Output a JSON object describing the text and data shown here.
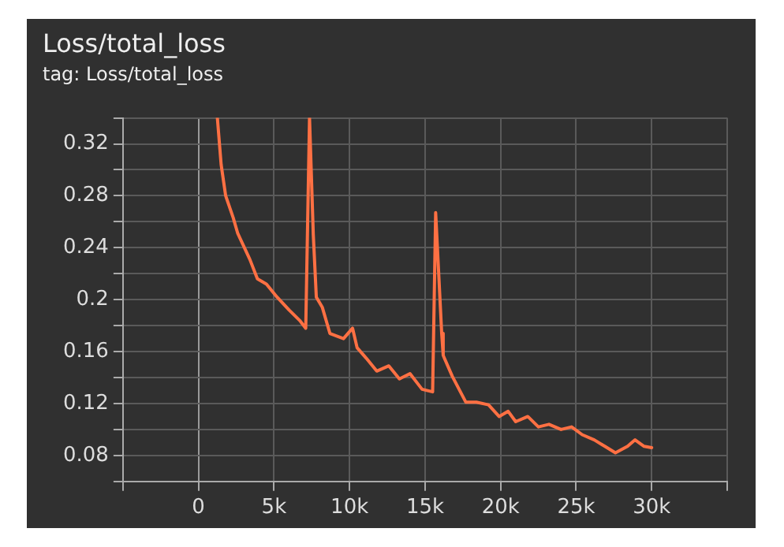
{
  "chart_data": {
    "type": "line",
    "title": "Loss/total_loss",
    "subtitle": "tag: Loss/total_loss",
    "x": [
      1250,
      1500,
      1800,
      2300,
      2600,
      3400,
      3900,
      4500,
      5200,
      6000,
      6700,
      7100,
      7350,
      7600,
      7800,
      8200,
      8700,
      9600,
      10200,
      10500,
      11100,
      11800,
      12600,
      13300,
      14000,
      14800,
      15500,
      15700,
      16100,
      16200,
      16800,
      17700,
      18400,
      19200,
      19900,
      20500,
      21000,
      21800,
      22500,
      23200,
      24000,
      24700,
      25400,
      26200,
      26900,
      27600,
      28400,
      28900,
      29500,
      30000
    ],
    "values": [
      0.34,
      0.304,
      0.28,
      0.263,
      0.251,
      0.231,
      0.216,
      0.212,
      0.202,
      0.192,
      0.184,
      0.178,
      0.34,
      0.25,
      0.202,
      0.194,
      0.174,
      0.17,
      0.178,
      0.163,
      0.155,
      0.145,
      0.149,
      0.139,
      0.143,
      0.131,
      0.129,
      0.267,
      0.174,
      0.157,
      0.141,
      0.121,
      0.121,
      0.119,
      0.11,
      0.114,
      0.106,
      0.11,
      0.102,
      0.104,
      0.1,
      0.102,
      0.096,
      0.092,
      0.087,
      0.082,
      0.087,
      0.092,
      0.087,
      0.086
    ],
    "color": "#ff7043",
    "xlim": [
      -5000,
      35000
    ],
    "xticks": [
      {
        "value": -5000,
        "label": null
      },
      0,
      {
        "value": 5000,
        "label": "5k"
      },
      {
        "value": 10000,
        "label": "10k"
      },
      {
        "value": 15000,
        "label": "15k"
      },
      {
        "value": 20000,
        "label": "20k"
      },
      {
        "value": 25000,
        "label": "25k"
      },
      {
        "value": 30000,
        "label": "30k"
      },
      {
        "value": 35000,
        "label": null
      }
    ],
    "ylim": [
      0.06,
      0.34
    ],
    "yticks": [
      {
        "value": 0.06,
        "label": null
      },
      0.08,
      {
        "value": 0.1,
        "label": null
      },
      0.12,
      {
        "value": 0.14,
        "label": null
      },
      0.16,
      {
        "value": 0.18,
        "label": null
      },
      0.2,
      {
        "value": 0.22,
        "label": null
      },
      0.24,
      {
        "value": 0.26,
        "label": null
      },
      0.28,
      {
        "value": 0.3,
        "label": null
      },
      0.32,
      {
        "value": 0.34,
        "label": null
      }
    ],
    "grid": true,
    "marker": "none"
  }
}
